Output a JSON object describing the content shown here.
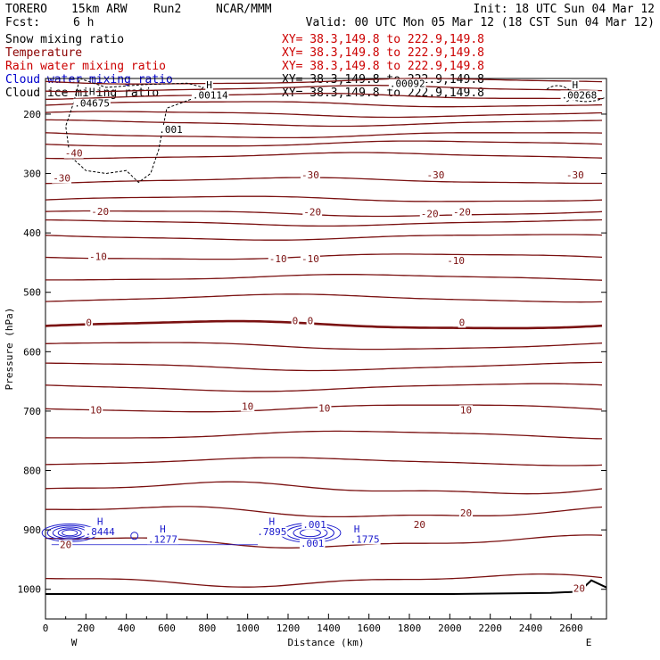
{
  "header": {
    "model": "TORERO",
    "resolution": "15km ARW",
    "run": "Run2",
    "org": "NCAR/MMM",
    "init": "Init: 18 UTC Sun 04 Mar 12",
    "fcst_label": "Fcst:",
    "fcst_value": "6 h",
    "valid": "Valid: 00 UTC Mon 05 Mar 12 (18 CST Sun 04 Mar 12)"
  },
  "fields": [
    {
      "name": "Snow mixing ratio",
      "xy": "XY=  38.3,149.8 to 222.9,149.8",
      "color": "#000000",
      "xy_color": "#cc0000"
    },
    {
      "name": "Temperature",
      "xy": "XY=  38.3,149.8 to 222.9,149.8",
      "color": "#8b0000",
      "xy_color": "#cc0000"
    },
    {
      "name": "Rain water mixing ratio",
      "xy": "XY=  38.3,149.8 to 222.9,149.8",
      "color": "#cc0000",
      "xy_color": "#cc0000"
    },
    {
      "name": "Cloud water mixing ratio",
      "xy": "XY=  38.3,149.8 to 222.9,149.8",
      "color": "#0000cc",
      "xy_color": "#000000"
    },
    {
      "name": "Cloud ice mixing ratio",
      "xy": "XY=  38.3,149.8 to 222.9,149.8",
      "color": "#000000",
      "xy_color": "#000000"
    }
  ],
  "colors": {
    "temperature": "#7a1010",
    "cloud_water": "#1a1acc",
    "snow": "#000000",
    "axis": "#000000",
    "terrain": "#000000"
  },
  "chart_data": {
    "type": "cross-section contour",
    "xlabel": "Distance (km)",
    "ylabel": "Pressure (hPa)",
    "xlim": [
      0,
      2775
    ],
    "ylim": [
      1050,
      140
    ],
    "x_ticks": [
      0,
      200,
      400,
      600,
      800,
      1000,
      1200,
      1400,
      1600,
      1800,
      2000,
      2200,
      2400,
      2600
    ],
    "y_ticks": [
      200,
      300,
      400,
      500,
      600,
      700,
      800,
      900,
      1000
    ],
    "x_endpoints": {
      "left": "W",
      "right": "E"
    },
    "temperature_contours_C": [
      {
        "p": 145,
        "label": null
      },
      {
        "p": 157,
        "label": null
      },
      {
        "p": 170,
        "label": null
      },
      {
        "p": 183,
        "label": null
      },
      {
        "p": 200,
        "label": null
      },
      {
        "p": 215,
        "label": null
      },
      {
        "p": 235,
        "label": null
      },
      {
        "p": 250,
        "label": null
      },
      {
        "p": 270,
        "label": "-40"
      },
      {
        "p": 312,
        "label": "-30"
      },
      {
        "p": 343,
        "label": null
      },
      {
        "p": 367,
        "label": "-20"
      },
      {
        "p": 383,
        "label": null
      },
      {
        "p": 407,
        "label": null
      },
      {
        "p": 440,
        "label": "-10"
      },
      {
        "p": 475,
        "label": null
      },
      {
        "p": 510,
        "label": null
      },
      {
        "p": 555,
        "label": "0"
      },
      {
        "p": 590,
        "label": null
      },
      {
        "p": 625,
        "label": null
      },
      {
        "p": 660,
        "label": null
      },
      {
        "p": 695,
        "label": "10"
      },
      {
        "p": 740,
        "label": null
      },
      {
        "p": 785,
        "label": null
      },
      {
        "p": 830,
        "label": null
      },
      {
        "p": 870,
        "label": null
      },
      {
        "p": 920,
        "label": "20"
      },
      {
        "p": 985,
        "label": null
      }
    ],
    "temperature_labels": [
      {
        "x": 140,
        "p": 270,
        "text": "-40"
      },
      {
        "x": 80,
        "p": 312,
        "text": "-30"
      },
      {
        "x": 1310,
        "p": 307,
        "text": "-30"
      },
      {
        "x": 1930,
        "p": 307,
        "text": "-30"
      },
      {
        "x": 2620,
        "p": 307,
        "text": "-30"
      },
      {
        "x": 270,
        "p": 368,
        "text": "-20"
      },
      {
        "x": 1320,
        "p": 369,
        "text": "-20"
      },
      {
        "x": 1900,
        "p": 372,
        "text": "-20"
      },
      {
        "x": 2060,
        "p": 369,
        "text": "-20"
      },
      {
        "x": 260,
        "p": 444,
        "text": "-10"
      },
      {
        "x": 1150,
        "p": 448,
        "text": "-10"
      },
      {
        "x": 1310,
        "p": 448,
        "text": "-10"
      },
      {
        "x": 2030,
        "p": 451,
        "text": "-10"
      },
      {
        "x": 215,
        "p": 555,
        "text": "0"
      },
      {
        "x": 1235,
        "p": 552,
        "text": "0"
      },
      {
        "x": 1310,
        "p": 552,
        "text": "0"
      },
      {
        "x": 2060,
        "p": 555,
        "text": "0"
      },
      {
        "x": 250,
        "p": 702,
        "text": "10"
      },
      {
        "x": 1000,
        "p": 696,
        "text": "10"
      },
      {
        "x": 1380,
        "p": 699,
        "text": "10"
      },
      {
        "x": 2080,
        "p": 702,
        "text": "10"
      },
      {
        "x": 100,
        "p": 929,
        "text": "20"
      },
      {
        "x": 1850,
        "p": 895,
        "text": "20"
      },
      {
        "x": 2080,
        "p": 876,
        "text": "20"
      },
      {
        "x": 2640,
        "p": 1003,
        "text": "20"
      }
    ],
    "snow_labels": [
      {
        "x": 230,
        "p": 166,
        "text": "H"
      },
      {
        "x": 230,
        "p": 186,
        "text": ".04675"
      },
      {
        "x": 810,
        "p": 155,
        "text": "H"
      },
      {
        "x": 815,
        "p": 172,
        "text": ".00114"
      },
      {
        "x": 620,
        "p": 230,
        "text": ".001"
      },
      {
        "x": 2620,
        "p": 155,
        "text": "H"
      },
      {
        "x": 2640,
        "p": 172,
        "text": ".00268"
      },
      {
        "x": 1790,
        "p": 153,
        "text": ".00092"
      }
    ],
    "cloud_water_labels": [
      {
        "x": 270,
        "p": 890,
        "text": "H"
      },
      {
        "x": 270,
        "p": 907,
        "text": ".8444"
      },
      {
        "x": 580,
        "p": 903,
        "text": "H"
      },
      {
        "x": 580,
        "p": 920,
        "text": ".1277"
      },
      {
        "x": 1120,
        "p": 890,
        "text": "H"
      },
      {
        "x": 1120,
        "p": 907,
        "text": ".7895"
      },
      {
        "x": 1330,
        "p": 895,
        "text": ".001"
      },
      {
        "x": 1320,
        "p": 927,
        "text": ".001"
      },
      {
        "x": 1540,
        "p": 903,
        "text": "H"
      },
      {
        "x": 1580,
        "p": 920,
        "text": ".1775"
      }
    ]
  }
}
